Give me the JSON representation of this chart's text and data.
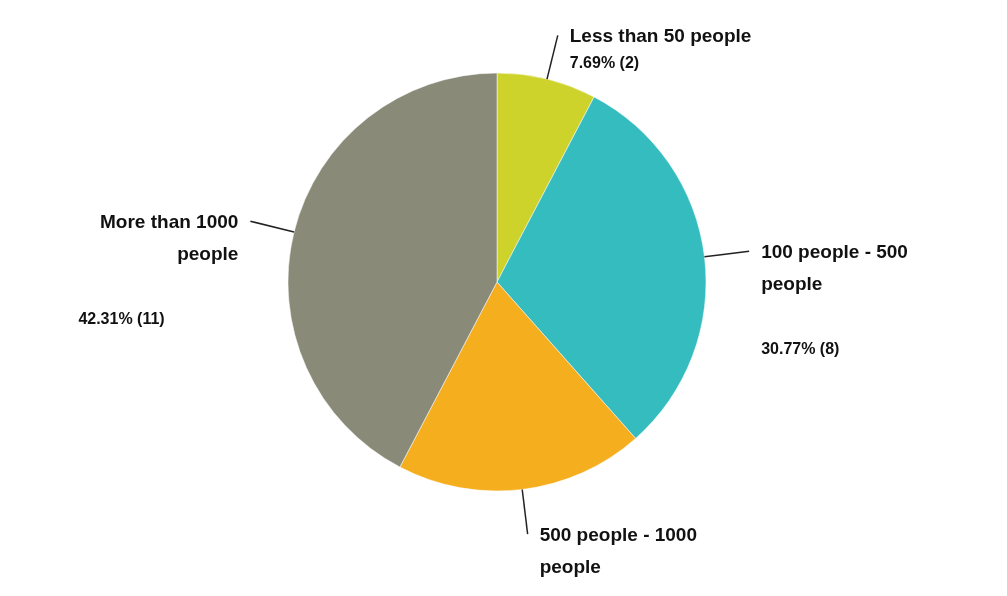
{
  "chart_data": {
    "type": "pie",
    "categories": [
      "Less than 50 people",
      "100 people - 500 people",
      "500 people - 1000 people",
      "More than 1000 people"
    ],
    "values": [
      7.69,
      30.77,
      19.23,
      42.31
    ],
    "colors": [
      "#cdd32a",
      "#35bcbf",
      "#f5ae1e",
      "#8a8a78"
    ],
    "value_labels": [
      "7.69% (2)",
      "30.77% (8)",
      null,
      "42.31% (11)"
    ]
  }
}
